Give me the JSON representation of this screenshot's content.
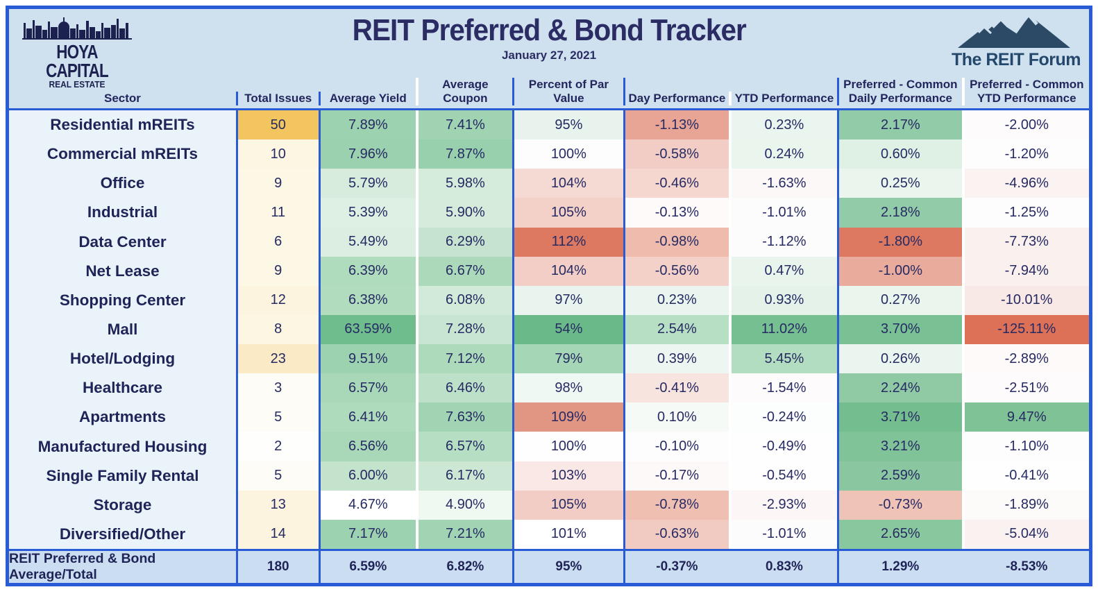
{
  "header": {
    "brand_top": "HOYA CAPITAL",
    "brand_sub": "REAL ESTATE",
    "title": "REIT Preferred & Bond Tracker",
    "date": "January 27, 2021",
    "forum_name": "The REIT Forum"
  },
  "colors": {
    "border_blue": "#2A5BD7",
    "header_band": "#CFE0EF",
    "sector_column": "#EAF3FA",
    "footer_band": "#CBDEF1",
    "text_navy": "#23265C"
  },
  "chart_data": {
    "type": "table",
    "title": "REIT Preferred & Bond Tracker",
    "subtitle": "January 27, 2021",
    "columns": [
      "Sector",
      "Total Issues",
      "Average Yield",
      "Average Coupon",
      "Percent of Par Value",
      "Day Performance",
      "YTD Performance",
      "Preferred - Common\nDaily Performance",
      "Preferred - Common\nYTD Performance"
    ],
    "rows": [
      {
        "sector": "Residential mREITs",
        "values": [
          "50",
          "7.89%",
          "7.41%",
          "95%",
          "-1.13%",
          "0.23%",
          "2.17%",
          "-2.00%"
        ],
        "colors": [
          "#F2C55F",
          "#9DD2B0",
          "#9FD3B2",
          "#E7F3EC",
          "#E8A494",
          "#EAF5EF",
          "#92CBA7",
          "#FDFBFB"
        ]
      },
      {
        "sector": "Commercial mREITs",
        "values": [
          "10",
          "7.96%",
          "7.87%",
          "100%",
          "-0.58%",
          "0.24%",
          "0.60%",
          "-1.20%"
        ],
        "colors": [
          "#FDF6E3",
          "#9BD1AE",
          "#98D0AD",
          "#FCFDFC",
          "#F2CDC5",
          "#EAF5EE",
          "#DFF0E5",
          "#FEFDFD"
        ]
      },
      {
        "sector": "Office",
        "values": [
          "9",
          "5.79%",
          "5.98%",
          "104%",
          "-0.46%",
          "-1.63%",
          "0.25%",
          "-4.96%"
        ],
        "colors": [
          "#FDF7E5",
          "#D8ECDE",
          "#D5EBDB",
          "#F5D9D3",
          "#F5D7D0",
          "#FCF8F8",
          "#EAF5EE",
          "#FAF3F2"
        ]
      },
      {
        "sector": "Industrial",
        "values": [
          "11",
          "5.39%",
          "5.90%",
          "105%",
          "-0.13%",
          "-1.01%",
          "2.18%",
          "-1.25%"
        ],
        "colors": [
          "#FDF7E5",
          "#DEEFE3",
          "#D7EBDC",
          "#F3D1C9",
          "#FDFAF9",
          "#FDFCFC",
          "#92CBA7",
          "#FEFDFD"
        ]
      },
      {
        "sector": "Data Center",
        "values": [
          "6",
          "5.49%",
          "6.29%",
          "112%",
          "-0.98%",
          "-1.12%",
          "-1.80%",
          "-7.73%"
        ],
        "colors": [
          "#FDF7E5",
          "#DCEEE1",
          "#C5E3CE",
          "#DC7960",
          "#EEBBAD",
          "#FDFCFC",
          "#DC7960",
          "#FAF0EE"
        ]
      },
      {
        "sector": "Net Lease",
        "values": [
          "9",
          "6.39%",
          "6.67%",
          "104%",
          "-0.56%",
          "0.47%",
          "-1.00%",
          "-7.94%"
        ],
        "colors": [
          "#FDF7E5",
          "#B0DCBE",
          "#ABD9BA",
          "#F2CEC6",
          "#F3D1C9",
          "#E9F4ED",
          "#E9AC9C",
          "#FAF0EE"
        ]
      },
      {
        "sector": "Shopping Center",
        "values": [
          "12",
          "6.38%",
          "6.08%",
          "97%",
          "0.23%",
          "0.93%",
          "0.27%",
          "-10.01%"
        ],
        "colors": [
          "#FCF4DE",
          "#B1DCBE",
          "#D2EAD8",
          "#E9F4EE",
          "#EBF5EF",
          "#E4F2EA",
          "#EAF5EE",
          "#F8E9E6"
        ]
      },
      {
        "sector": "Mall",
        "values": [
          "8",
          "63.59%",
          "7.28%",
          "54%",
          "2.54%",
          "11.02%",
          "3.70%",
          "-125.11%"
        ],
        "colors": [
          "#FDF6E2",
          "#6FBC8D",
          "#C7E5D1",
          "#69BA88",
          "#B7DFC4",
          "#76BF90",
          "#79C094",
          "#DC7157"
        ]
      },
      {
        "sector": "Hotel/Lodging",
        "values": [
          "23",
          "9.51%",
          "7.12%",
          "79%",
          "0.39%",
          "5.45%",
          "0.26%",
          "-2.89%"
        ],
        "colors": [
          "#FAEBC6",
          "#9DD2B0",
          "#ACDABB",
          "#A5D6B5",
          "#EDF6F0",
          "#B3DDC0",
          "#EBF5EF",
          "#FDFAF9"
        ]
      },
      {
        "sector": "Healthcare",
        "values": [
          "3",
          "6.57%",
          "6.46%",
          "98%",
          "-0.41%",
          "-1.54%",
          "2.24%",
          "-2.51%"
        ],
        "colors": [
          "#FEFCF7",
          "#A9D8B8",
          "#BDE1C8",
          "#F0F8F3",
          "#F8E4DF",
          "#FDFBFB",
          "#8FCAA4",
          "#FDFBFB"
        ]
      },
      {
        "sector": "Apartments",
        "values": [
          "5",
          "6.41%",
          "7.63%",
          "109%",
          "0.10%",
          "-0.24%",
          "3.71%",
          "9.47%"
        ],
        "colors": [
          "#FEFCF7",
          "#AFDBBD",
          "#A1D4B2",
          "#E09682",
          "#F5FAF7",
          "#FCFDFD",
          "#74BD8F",
          "#7EC296"
        ]
      },
      {
        "sector": "Manufactured Housing",
        "values": [
          "2",
          "6.56%",
          "6.57%",
          "100%",
          "-0.10%",
          "-0.49%",
          "3.21%",
          "-1.10%"
        ],
        "colors": [
          "#FEFEFC",
          "#A9D8B8",
          "#B6DEC2",
          "#FDFEFD",
          "#FEFDFD",
          "#FEFEFE",
          "#80C399",
          "#FEFDFD"
        ]
      },
      {
        "sector": "Single Family Rental",
        "values": [
          "5",
          "6.00%",
          "6.17%",
          "103%",
          "-0.17%",
          "-0.54%",
          "2.59%",
          "-0.41%"
        ],
        "colors": [
          "#FEFCF7",
          "#C3E3CD",
          "#CCE7D4",
          "#F9E8E5",
          "#FDF9F8",
          "#FEFEFE",
          "#8AC7A0",
          "#FEFEFE"
        ]
      },
      {
        "sector": "Storage",
        "values": [
          "13",
          "4.67%",
          "4.90%",
          "105%",
          "-0.78%",
          "-2.93%",
          "-0.73%",
          "-1.89%"
        ],
        "colors": [
          "#FCF4DE",
          "#FEFFFE",
          "#F0F8F2",
          "#F2CDC5",
          "#EFC0B2",
          "#FCF7F6",
          "#F0C3B7",
          "#FDFBFA"
        ]
      },
      {
        "sector": "Diversified/Other",
        "values": [
          "14",
          "7.17%",
          "7.21%",
          "101%",
          "-0.63%",
          "-1.01%",
          "2.65%",
          "-5.04%"
        ],
        "colors": [
          "#FCF4DE",
          "#9DD2B0",
          "#A0D4B2",
          "#FEFFFE",
          "#F1CAC1",
          "#FDFCFC",
          "#89C79F",
          "#FAF2F0"
        ]
      }
    ],
    "footer": {
      "label": "REIT Preferred & Bond Average/Total",
      "values": [
        "180",
        "6.59%",
        "6.82%",
        "95%",
        "-0.37%",
        "0.83%",
        "1.29%",
        "-8.53%"
      ]
    }
  }
}
